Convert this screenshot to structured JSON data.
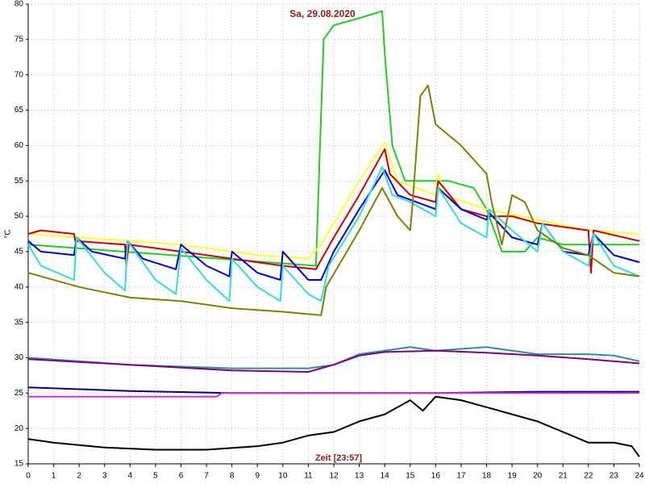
{
  "chart_data": {
    "type": "line",
    "title": "Sa, 29.08.2020",
    "x_label": "Zeit [23:57]",
    "y_label": "°C",
    "xlim": [
      0,
      24
    ],
    "xticks": [
      0,
      1,
      2,
      3,
      4,
      5,
      6,
      7,
      8,
      9,
      10,
      11,
      12,
      13,
      14,
      15,
      16,
      17,
      18,
      19,
      20,
      21,
      22,
      23,
      24
    ],
    "ylim": [
      15,
      80
    ],
    "yticks": [
      15,
      20,
      25,
      30,
      35,
      40,
      45,
      50,
      55,
      60,
      65,
      70,
      75,
      80
    ],
    "grid": true,
    "series": [
      {
        "color": "#22cc22",
        "x": [
          0,
          11.3,
          11.6,
          12,
          13,
          13.9,
          14,
          14.3,
          14.8,
          15.5,
          16.5,
          17.5,
          18,
          18.6,
          19.5,
          20,
          21,
          22,
          24
        ],
        "values": [
          46,
          43,
          75,
          77,
          78,
          79,
          73,
          60,
          55,
          55,
          55,
          54,
          51,
          45,
          45,
          47,
          46,
          46,
          46
        ]
      },
      {
        "color": "#ffff33",
        "x": [
          0,
          2,
          6,
          9,
          11,
          11.5,
          13,
          14,
          14.5,
          16,
          16.1,
          16.3,
          18,
          20,
          22,
          24
        ],
        "values": [
          47.5,
          47,
          46,
          44.5,
          44,
          46,
          55,
          60.5,
          55,
          53,
          56,
          53,
          51,
          49.5,
          48,
          47.5
        ]
      },
      {
        "color": "#cc0000",
        "x": [
          0,
          0.5,
          1.8,
          1.85,
          3.8,
          3.85,
          3.95,
          6,
          8,
          10,
          11.3,
          12,
          13,
          14,
          14.2,
          15,
          16,
          16.1,
          17,
          18,
          19,
          20,
          21,
          22,
          22.1,
          22.2,
          24
        ],
        "values": [
          47.5,
          48,
          47.5,
          46.5,
          46,
          43,
          46,
          45,
          44,
          43,
          42.5,
          47,
          53,
          59.5,
          56,
          53,
          52,
          55,
          51,
          50,
          50,
          49,
          48.5,
          48,
          42,
          48,
          46.5
        ]
      },
      {
        "color": "#0000cc",
        "x": [
          0,
          0.5,
          1.8,
          1.9,
          2.5,
          3.8,
          3.9,
          4.5,
          5.8,
          6,
          7,
          7.9,
          8,
          9,
          9.9,
          10,
          11,
          11.5,
          12,
          13,
          14,
          14.5,
          16,
          16.1,
          17,
          18,
          18.1,
          19,
          20,
          20.2,
          21,
          22,
          22.2,
          23,
          24
        ],
        "values": [
          46.5,
          45,
          44.5,
          47,
          45,
          44,
          46.5,
          44,
          42.5,
          46,
          43,
          41.5,
          45,
          42,
          41,
          45,
          41,
          41,
          45,
          51,
          56.5,
          53,
          51,
          54,
          51,
          49.5,
          50.5,
          47,
          46,
          49,
          45,
          44.5,
          47.5,
          44.5,
          43.5
        ]
      },
      {
        "color": "#33dddd",
        "x": [
          0,
          0.5,
          1.8,
          1.9,
          3,
          3.8,
          3.9,
          5,
          5.8,
          6,
          7,
          7.9,
          8,
          9,
          9.9,
          10,
          11,
          11.5,
          11.8,
          13,
          13.9,
          14.3,
          15,
          16,
          16.1,
          17,
          18,
          18.1,
          19,
          20,
          20.2,
          21,
          22,
          22.2,
          23,
          24
        ],
        "values": [
          46,
          43,
          41,
          47,
          42,
          39.5,
          46.5,
          41,
          39,
          45.5,
          41,
          38,
          44,
          40,
          38,
          43,
          39,
          38,
          43,
          50,
          57,
          53,
          52,
          50,
          54,
          49,
          47,
          51,
          48,
          45,
          49,
          45,
          43,
          47.5,
          43,
          41.5
        ]
      },
      {
        "color": "#808000",
        "x": [
          0,
          2,
          4,
          6,
          8,
          10,
          11.5,
          11.7,
          13,
          13.9,
          14.5,
          15,
          15.1,
          15.4,
          15.7,
          16,
          17,
          18,
          18.2,
          18.6,
          19,
          19.5,
          20,
          21,
          22,
          23,
          24
        ],
        "values": [
          42,
          40,
          38.5,
          38,
          37,
          36.5,
          36,
          40,
          48,
          54,
          50,
          48,
          52,
          67,
          68.5,
          63,
          60,
          56,
          52,
          46,
          53,
          52,
          48,
          45.5,
          44.5,
          42,
          41.5
        ]
      },
      {
        "color": "#2f8f8f",
        "x": [
          0,
          4,
          8,
          11,
          12,
          13,
          14,
          15,
          16,
          18,
          19,
          20,
          22,
          23,
          24
        ],
        "values": [
          30,
          29,
          28.5,
          28.5,
          29,
          30.5,
          31,
          31.5,
          31,
          31.5,
          31,
          30.5,
          30.5,
          30.3,
          29.5
        ]
      },
      {
        "color": "#800080",
        "x": [
          0,
          4,
          8,
          11,
          12,
          13,
          14,
          16,
          18,
          20,
          22,
          24
        ],
        "values": [
          29.8,
          29,
          28.2,
          28,
          29,
          30.3,
          30.8,
          31,
          30.7,
          30.3,
          29.8,
          29.2
        ]
      },
      {
        "color": "#000080",
        "x": [
          0,
          4,
          8,
          16,
          20,
          24
        ],
        "values": [
          25.8,
          25.3,
          25,
          25,
          25.2,
          25.2
        ]
      },
      {
        "color": "#cc33cc",
        "x": [
          0,
          7.4,
          7.6,
          15,
          24
        ],
        "values": [
          24.5,
          24.5,
          25,
          25,
          25
        ]
      },
      {
        "color": "#000000",
        "x": [
          0,
          1,
          3,
          5,
          7,
          9,
          10,
          11,
          12,
          13,
          14,
          15,
          15.5,
          16,
          17,
          18,
          19,
          20,
          21,
          22,
          23,
          23.7,
          24
        ],
        "values": [
          18.5,
          18,
          17.3,
          17,
          17,
          17.5,
          18,
          19,
          19.5,
          21,
          22,
          24,
          22.5,
          24.5,
          24,
          23,
          22,
          21,
          19.5,
          18,
          18,
          17.5,
          16
        ]
      }
    ]
  }
}
